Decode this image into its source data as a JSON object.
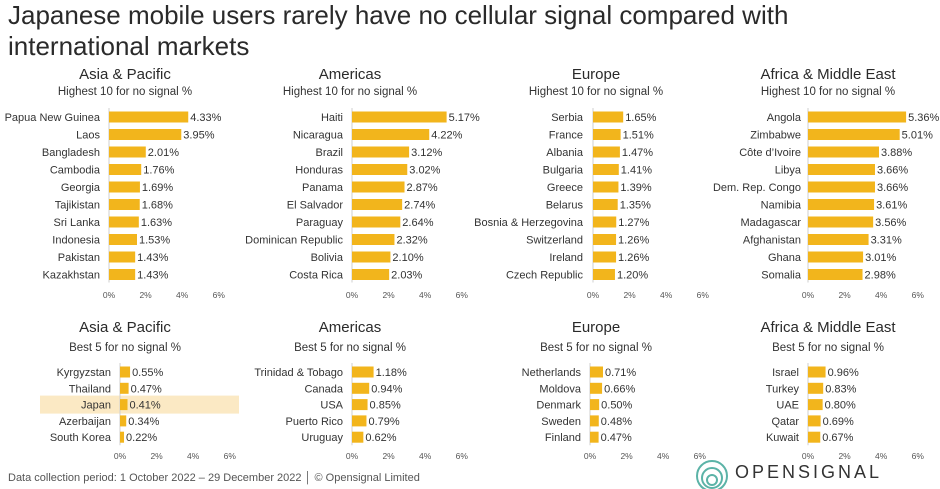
{
  "title": "Japanese mobile users rarely have no cellular signal compared with international markets",
  "footer": "Data collection period: 1 October 2022 – 29 December 2022 │ © Opensignal Limited",
  "logo_text": "OPENSIGNAL",
  "colors": {
    "bar": "#f2b51c",
    "highlight": "#fbe9c4",
    "axis": "#cfcfcf",
    "text": "#333333"
  },
  "chart_data": [
    {
      "type": "bar",
      "orientation": "horizontal",
      "title": "Asia & Pacific",
      "subtitle": "Highest 10 for no signal %",
      "categories": [
        "Papua New Guinea",
        "Laos",
        "Bangladesh",
        "Cambodia",
        "Georgia",
        "Tajikistan",
        "Sri Lanka",
        "Indonesia",
        "Pakistan",
        "Kazakhstan"
      ],
      "values": [
        4.33,
        3.95,
        2.01,
        1.76,
        1.69,
        1.68,
        1.63,
        1.53,
        1.43,
        1.43
      ],
      "labels": [
        "4.33%",
        "3.95%",
        "2.01%",
        "1.76%",
        "1.69%",
        "1.68%",
        "1.63%",
        "1.53%",
        "1.43%",
        "1.43%"
      ],
      "xlim": [
        0,
        6
      ],
      "ticks": [
        "0%",
        "2%",
        "4%",
        "6%"
      ]
    },
    {
      "type": "bar",
      "orientation": "horizontal",
      "title": "Americas",
      "subtitle": "Highest 10 for no signal %",
      "categories": [
        "Haiti",
        "Nicaragua",
        "Brazil",
        "Honduras",
        "Panama",
        "El Salvador",
        "Paraguay",
        "Dominican Republic",
        "Bolivia",
        "Costa Rica"
      ],
      "values": [
        5.17,
        4.22,
        3.12,
        3.02,
        2.87,
        2.74,
        2.64,
        2.32,
        2.1,
        2.03
      ],
      "labels": [
        "5.17%",
        "4.22%",
        "3.12%",
        "3.02%",
        "2.87%",
        "2.74%",
        "2.64%",
        "2.32%",
        "2.10%",
        "2.03%"
      ],
      "xlim": [
        0,
        6
      ],
      "ticks": [
        "0%",
        "2%",
        "4%",
        "6%"
      ]
    },
    {
      "type": "bar",
      "orientation": "horizontal",
      "title": "Europe",
      "subtitle": "Highest 10 for no signal %",
      "categories": [
        "Serbia",
        "France",
        "Albania",
        "Bulgaria",
        "Greece",
        "Belarus",
        "Bosnia & Herzegovina",
        "Switzerland",
        "Ireland",
        "Czech Republic"
      ],
      "values": [
        1.65,
        1.51,
        1.47,
        1.41,
        1.39,
        1.35,
        1.27,
        1.26,
        1.26,
        1.2
      ],
      "labels": [
        "1.65%",
        "1.51%",
        "1.47%",
        "1.41%",
        "1.39%",
        "1.35%",
        "1.27%",
        "1.26%",
        "1.26%",
        "1.20%"
      ],
      "xlim": [
        0,
        6
      ],
      "ticks": [
        "0%",
        "2%",
        "4%",
        "6%"
      ]
    },
    {
      "type": "bar",
      "orientation": "horizontal",
      "title": "Africa & Middle East",
      "subtitle": "Highest 10 for no signal %",
      "categories": [
        "Angola",
        "Zimbabwe",
        "Côte d’Ivoire",
        "Libya",
        "Dem. Rep. Congo",
        "Namibia",
        "Madagascar",
        "Afghanistan",
        "Ghana",
        "Somalia"
      ],
      "values": [
        5.36,
        5.01,
        3.88,
        3.66,
        3.66,
        3.61,
        3.56,
        3.31,
        3.01,
        2.98
      ],
      "labels": [
        "5.36%",
        "5.01%",
        "3.88%",
        "3.66%",
        "3.66%",
        "3.61%",
        "3.56%",
        "3.31%",
        "3.01%",
        "2.98%"
      ],
      "xlim": [
        0,
        6
      ],
      "ticks": [
        "0%",
        "2%",
        "4%",
        "6%"
      ]
    },
    {
      "type": "bar",
      "orientation": "horizontal",
      "title": "Asia & Pacific",
      "subtitle": "Best 5 for no signal %",
      "categories": [
        "Kyrgyzstan",
        "Thailand",
        "Japan",
        "Azerbaijan",
        "South Korea"
      ],
      "values": [
        0.55,
        0.47,
        0.41,
        0.34,
        0.22
      ],
      "labels": [
        "0.55%",
        "0.47%",
        "0.41%",
        "0.34%",
        "0.22%"
      ],
      "highlight": "Japan",
      "xlim": [
        0,
        6
      ],
      "ticks": [
        "0%",
        "2%",
        "4%",
        "6%"
      ]
    },
    {
      "type": "bar",
      "orientation": "horizontal",
      "title": "Americas",
      "subtitle": "Best 5 for no signal %",
      "categories": [
        "Trinidad & Tobago",
        "Canada",
        "USA",
        "Puerto Rico",
        "Uruguay"
      ],
      "values": [
        1.18,
        0.94,
        0.85,
        0.79,
        0.62
      ],
      "labels": [
        "1.18%",
        "0.94%",
        "0.85%",
        "0.79%",
        "0.62%"
      ],
      "xlim": [
        0,
        6
      ],
      "ticks": [
        "0%",
        "2%",
        "4%",
        "6%"
      ]
    },
    {
      "type": "bar",
      "orientation": "horizontal",
      "title": "Europe",
      "subtitle": "Best 5 for no signal %",
      "categories": [
        "Netherlands",
        "Moldova",
        "Denmark",
        "Sweden",
        "Finland"
      ],
      "values": [
        0.71,
        0.66,
        0.5,
        0.48,
        0.47
      ],
      "labels": [
        "0.71%",
        "0.66%",
        "0.50%",
        "0.48%",
        "0.47%"
      ],
      "xlim": [
        0,
        6
      ],
      "ticks": [
        "0%",
        "2%",
        "4%",
        "6%"
      ]
    },
    {
      "type": "bar",
      "orientation": "horizontal",
      "title": "Africa & Middle East",
      "subtitle": "Best 5 for no signal %",
      "categories": [
        "Israel",
        "Turkey",
        "UAE",
        "Qatar",
        "Kuwait"
      ],
      "values": [
        0.96,
        0.83,
        0.8,
        0.69,
        0.67
      ],
      "labels": [
        "0.96%",
        "0.83%",
        "0.80%",
        "0.69%",
        "0.67%"
      ],
      "xlim": [
        0,
        6
      ],
      "ticks": [
        "0%",
        "2%",
        "4%",
        "6%"
      ]
    }
  ]
}
